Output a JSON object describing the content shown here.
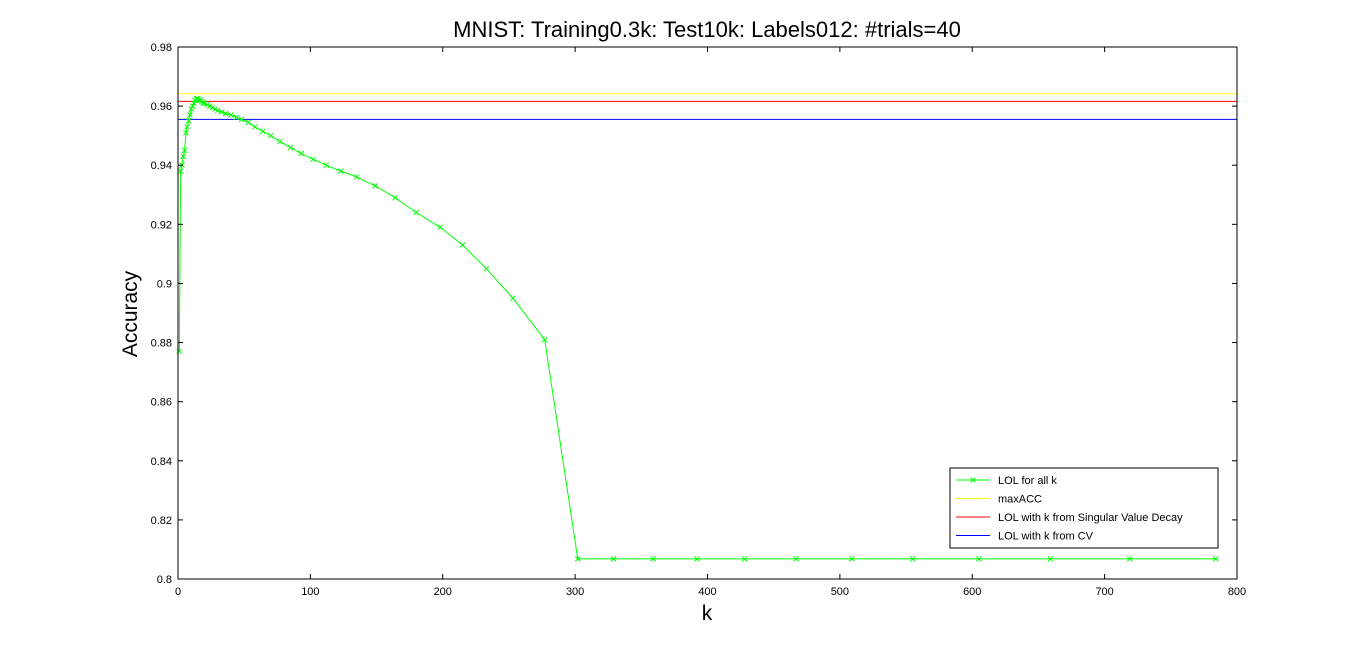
{
  "chart_data": {
    "type": "line",
    "title": "MNIST: Training0.3k: Test10k: Labels012: #trials=40",
    "xlabel": "k",
    "ylabel": "Accuracy",
    "xlim": [
      0,
      800
    ],
    "ylim": [
      0.8,
      0.98
    ],
    "xticks": [
      0,
      100,
      200,
      300,
      400,
      500,
      600,
      700,
      800
    ],
    "yticks": [
      0.8,
      0.82,
      0.84,
      0.86,
      0.88,
      0.9,
      0.92,
      0.94,
      0.96,
      0.98
    ],
    "ytick_labels": [
      "0.8",
      "0.82",
      "0.84",
      "0.86",
      "0.88",
      "0.9",
      "0.92",
      "0.94",
      "0.96",
      "0.98"
    ],
    "grid": false,
    "legend_position": "bottom-right",
    "series": [
      {
        "name": "LOL for all k",
        "color": "#00ff00",
        "marker": "x",
        "x": [
          1,
          2,
          3,
          4,
          5,
          6,
          7,
          8,
          9,
          10,
          11,
          12,
          13,
          14,
          15,
          16,
          17,
          18,
          19,
          20,
          22,
          24,
          26,
          28,
          30,
          33,
          36,
          40,
          44,
          48,
          53,
          58,
          64,
          70,
          77,
          85,
          93,
          102,
          112,
          123,
          135,
          149,
          164,
          180,
          198,
          215,
          233,
          253,
          277,
          302,
          329,
          359,
          392,
          428,
          467,
          509,
          555,
          605,
          659,
          719,
          784
        ],
        "values": [
          0.877,
          0.938,
          0.94,
          0.943,
          0.945,
          0.951,
          0.953,
          0.955,
          0.957,
          0.959,
          0.96,
          0.961,
          0.962,
          0.9625,
          0.9625,
          0.962,
          0.962,
          0.9615,
          0.961,
          0.961,
          0.9605,
          0.96,
          0.9595,
          0.959,
          0.9585,
          0.958,
          0.9575,
          0.957,
          0.9562,
          0.9555,
          0.9545,
          0.953,
          0.9515,
          0.95,
          0.948,
          0.946,
          0.944,
          0.942,
          0.94,
          0.938,
          0.936,
          0.933,
          0.929,
          0.924,
          0.919,
          0.913,
          0.905,
          0.895,
          0.881,
          0.8068,
          0.8068,
          0.8068,
          0.8068,
          0.8068,
          0.8068,
          0.8068,
          0.8068,
          0.8068,
          0.8068,
          0.8068,
          0.8068
        ]
      },
      {
        "name": "maxACC",
        "color": "#ffff00",
        "hline": 0.9642
      },
      {
        "name": "LOL with k from Singular Value Decay",
        "color": "#ff0000",
        "hline": 0.9616
      },
      {
        "name": "LOL with k from CV",
        "color": "#0000ff",
        "hline": 0.9555
      }
    ]
  }
}
